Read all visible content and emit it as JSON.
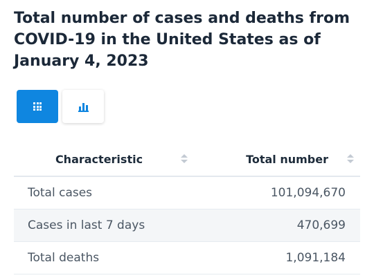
{
  "chart_data": {
    "type": "table",
    "title": "Total number of cases and deaths from COVID-19 in the United States as of January 4, 2023",
    "columns": [
      "Characteristic",
      "Total number"
    ],
    "rows": [
      {
        "label": "Total cases",
        "value": "101,094,670"
      },
      {
        "label": "Cases in last 7 days",
        "value": "470,699"
      },
      {
        "label": "Total deaths",
        "value": "1,091,184"
      }
    ]
  },
  "toggles": {
    "table_icon": "grid-icon",
    "chart_icon": "bar-chart-icon",
    "active": "table"
  },
  "colors": {
    "accent": "#0f86e0",
    "title": "#1b2838",
    "row_alt": "#f4f6f8"
  }
}
